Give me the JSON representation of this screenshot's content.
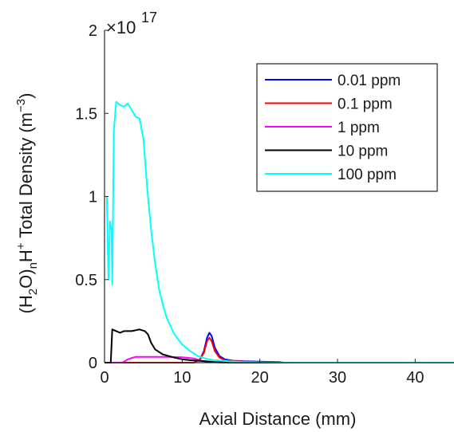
{
  "chart_data": {
    "type": "line",
    "title": "",
    "xlabel": "Axial Distance (mm)",
    "ylabel": {
      "part1": "(H",
      "sub1": "2",
      "part2": "O)",
      "sub2": "n",
      "part3": "H",
      "sup1": "+",
      "part4": " Total Density (m",
      "sup2": "−3",
      "part5": ")"
    },
    "y_exponent": {
      "base": "×10",
      "power": "17"
    },
    "xlim": [
      0,
      45
    ],
    "ylim": [
      0,
      2
    ],
    "xticks": [
      0,
      10,
      20,
      30,
      40
    ],
    "yticks": [
      0,
      0.5,
      1,
      1.5,
      2
    ],
    "ytick_labels": [
      "0",
      "0.5",
      "1",
      "1.5",
      "2"
    ],
    "grid": false,
    "legend_position": "top-right",
    "series": [
      {
        "name": "0.01 ppm",
        "color": "#0000ff",
        "points": [
          [
            0,
            0
          ],
          [
            11.5,
            0
          ],
          [
            12.3,
            0.02
          ],
          [
            12.8,
            0.07
          ],
          [
            13.2,
            0.15
          ],
          [
            13.5,
            0.18
          ],
          [
            13.8,
            0.16
          ],
          [
            14.2,
            0.09
          ],
          [
            14.8,
            0.04
          ],
          [
            15.5,
            0.02
          ],
          [
            16.5,
            0.012
          ],
          [
            18,
            0.008
          ],
          [
            20,
            0.006
          ],
          [
            22.5,
            0.004
          ],
          [
            23,
            0
          ],
          [
            45,
            0
          ]
        ]
      },
      {
        "name": "0.1 ppm",
        "color": "#ff0000",
        "points": [
          [
            0,
            0
          ],
          [
            11.5,
            0
          ],
          [
            12.3,
            0.02
          ],
          [
            12.8,
            0.06
          ],
          [
            13.2,
            0.13
          ],
          [
            13.5,
            0.15
          ],
          [
            13.8,
            0.13
          ],
          [
            14.2,
            0.07
          ],
          [
            14.8,
            0.03
          ],
          [
            15.5,
            0.015
          ],
          [
            16.5,
            0.01
          ],
          [
            18,
            0.006
          ],
          [
            19.5,
            0.004
          ],
          [
            20,
            0
          ],
          [
            45,
            0
          ]
        ]
      },
      {
        "name": "1 ppm",
        "color": "#ff00ff",
        "points": [
          [
            0,
            0
          ],
          [
            2.3,
            0
          ],
          [
            3,
            0.02
          ],
          [
            4,
            0.035
          ],
          [
            6,
            0.035
          ],
          [
            8,
            0.035
          ],
          [
            10,
            0.032
          ],
          [
            11.5,
            0.025
          ],
          [
            12.5,
            0.012
          ],
          [
            13.2,
            0.006
          ],
          [
            14,
            0.003
          ],
          [
            15,
            0
          ],
          [
            45,
            0
          ]
        ]
      },
      {
        "name": "10 ppm",
        "color": "#000000",
        "points": [
          [
            0,
            0
          ],
          [
            0.8,
            0
          ],
          [
            1,
            0.2
          ],
          [
            1.5,
            0.19
          ],
          [
            2,
            0.18
          ],
          [
            2.5,
            0.19
          ],
          [
            3.5,
            0.19
          ],
          [
            4.5,
            0.2
          ],
          [
            5.2,
            0.19
          ],
          [
            5.6,
            0.17
          ],
          [
            6,
            0.12
          ],
          [
            6.5,
            0.08
          ],
          [
            7.5,
            0.05
          ],
          [
            9,
            0.03
          ],
          [
            10,
            0.02
          ],
          [
            11,
            0.015
          ],
          [
            12.5,
            0.01
          ],
          [
            14,
            0.005
          ],
          [
            15.5,
            0.002
          ],
          [
            17,
            0
          ],
          [
            45,
            0
          ]
        ]
      },
      {
        "name": "100 ppm",
        "color": "#00ffff",
        "points": [
          [
            0.3,
            1.0
          ],
          [
            0.5,
            0.5
          ],
          [
            0.7,
            0.85
          ],
          [
            0.9,
            0.8
          ],
          [
            1,
            0.47
          ],
          [
            1.2,
            1.4
          ],
          [
            1.5,
            1.57
          ],
          [
            2,
            1.55
          ],
          [
            2.5,
            1.54
          ],
          [
            3,
            1.56
          ],
          [
            3.5,
            1.52
          ],
          [
            4,
            1.48
          ],
          [
            4.5,
            1.47
          ],
          [
            5,
            1.35
          ],
          [
            5.5,
            1.05
          ],
          [
            6,
            0.8
          ],
          [
            6.5,
            0.6
          ],
          [
            7,
            0.45
          ],
          [
            7.5,
            0.35
          ],
          [
            8,
            0.27
          ],
          [
            9,
            0.17
          ],
          [
            10,
            0.11
          ],
          [
            11,
            0.07
          ],
          [
            12,
            0.04
          ],
          [
            13,
            0.025
          ],
          [
            14,
            0.015
          ],
          [
            16,
            0.008
          ],
          [
            18,
            0.004
          ],
          [
            20,
            0.002
          ],
          [
            23,
            0.0005
          ],
          [
            30,
            0
          ],
          [
            45,
            0
          ]
        ]
      }
    ]
  }
}
